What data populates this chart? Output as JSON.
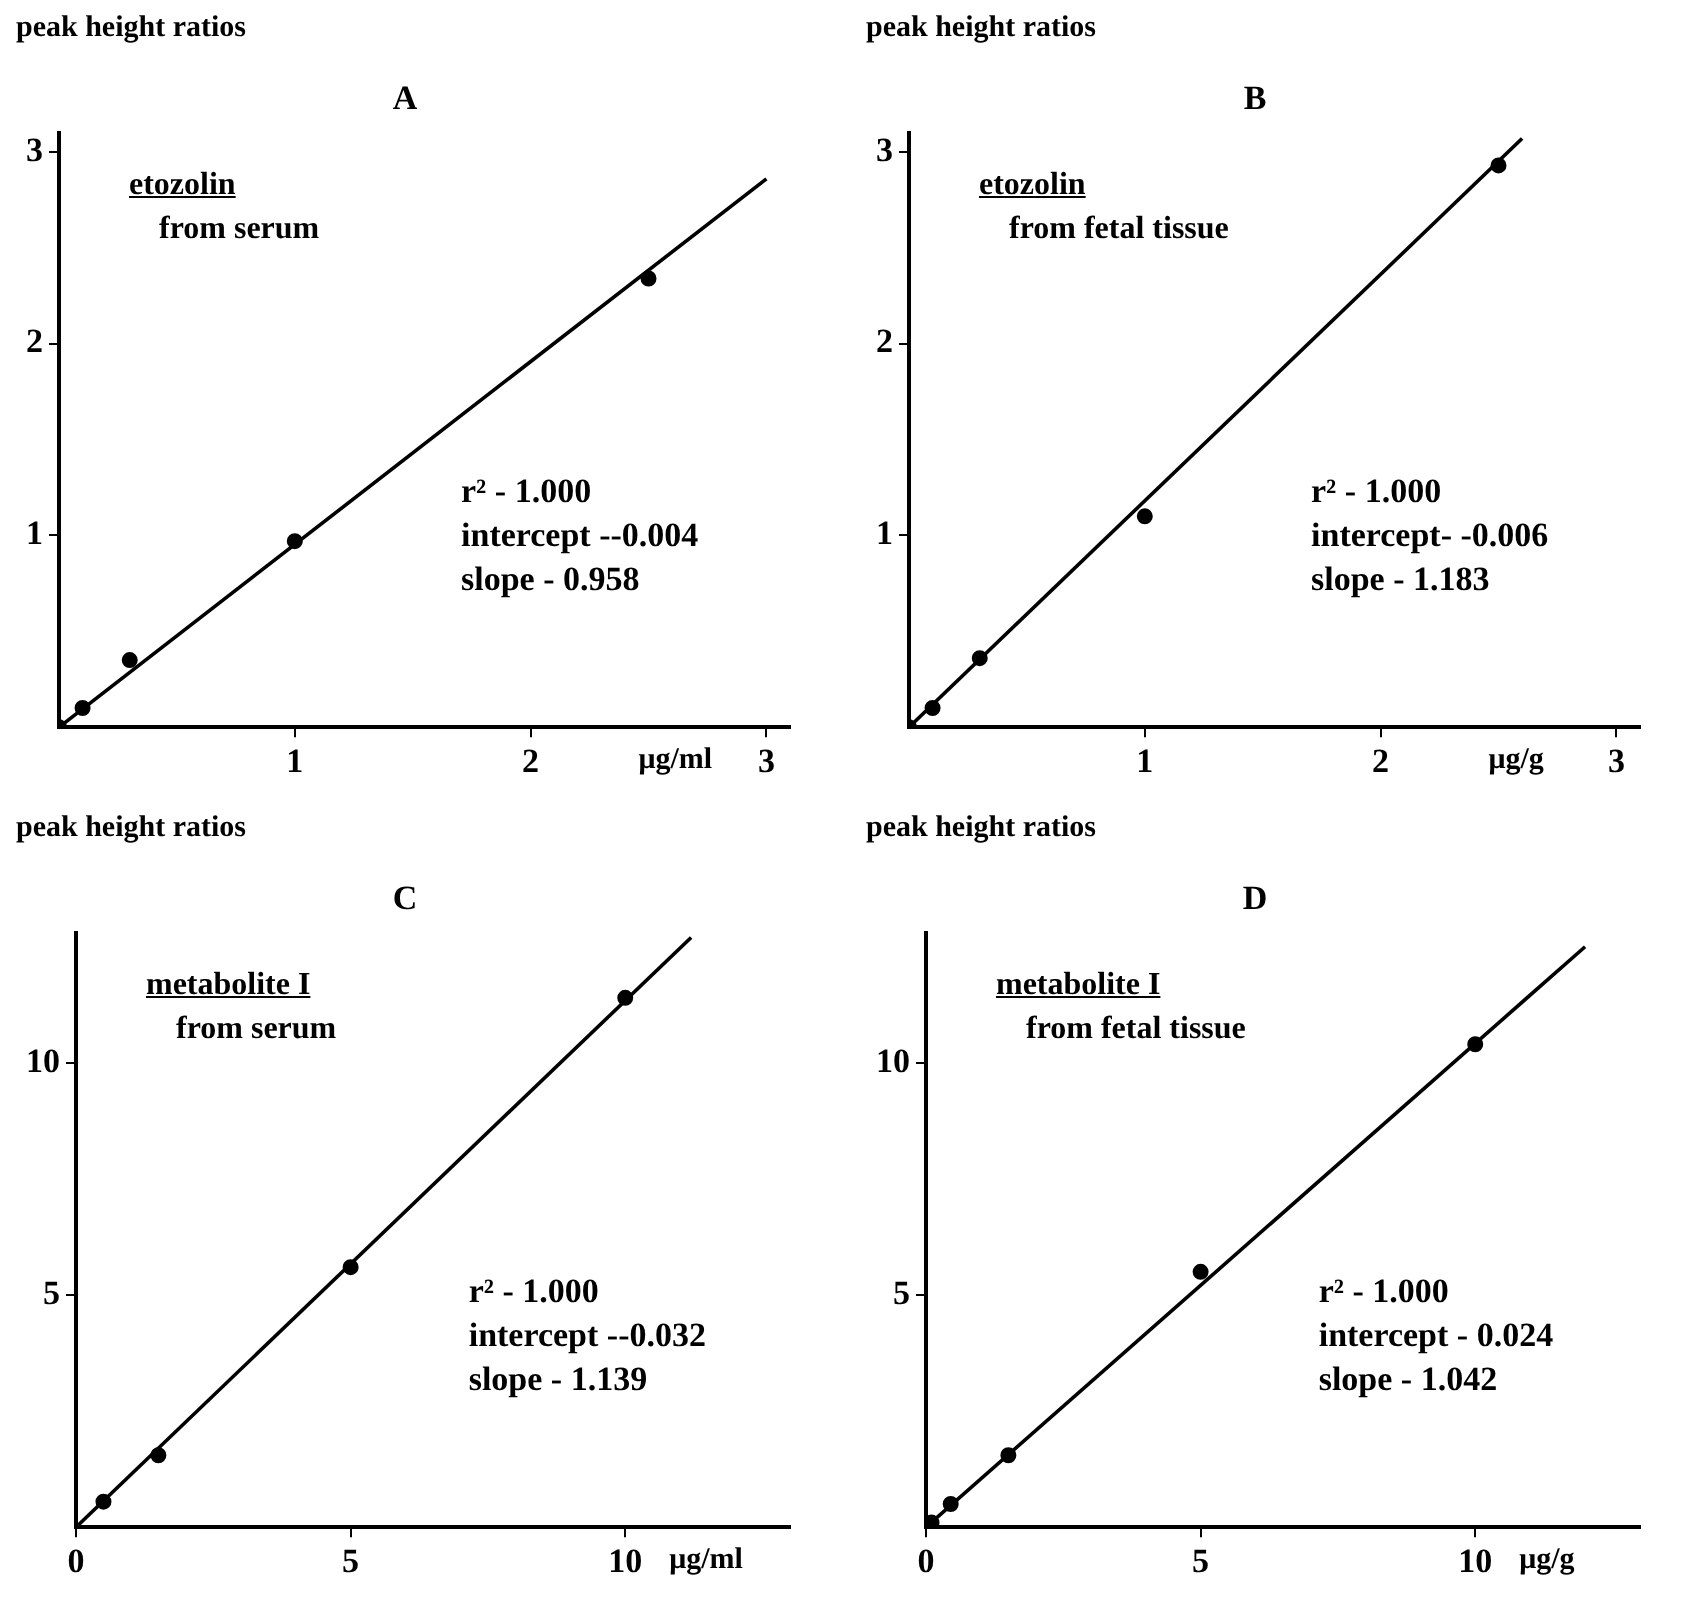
{
  "chart_data": [
    {
      "type": "scatter",
      "title": "A",
      "ylabel": "peak height ratios",
      "xlabel": "μg/ml",
      "xlim": [
        0,
        3.1
      ],
      "ylim": [
        0,
        3.1
      ],
      "xticks": [
        1,
        2,
        3
      ],
      "yticks": [
        1,
        2,
        3
      ],
      "annotations": [
        "etozolin",
        "from serum",
        "r² - 1.000",
        "intercept --0.004",
        "slope - 0.958"
      ],
      "series": [
        {
          "marker": "circle",
          "color": "#000000",
          "x": [
            0,
            0.1,
            0.3,
            1,
            2.5
          ],
          "values": [
            0,
            0.1,
            0.35,
            0.97,
            2.34
          ]
        },
        {
          "type": "line",
          "marker": "none",
          "color": "#000000",
          "x": [
            0,
            3
          ],
          "values": [
            0,
            2.86
          ]
        }
      ]
    },
    {
      "type": "scatter",
      "title": "B",
      "ylabel": "peak height ratios",
      "xlabel": "μg/g",
      "xlim": [
        0,
        3.1
      ],
      "ylim": [
        0,
        3.1
      ],
      "xticks": [
        1,
        2,
        3
      ],
      "yticks": [
        1,
        2,
        3
      ],
      "annotations": [
        "etozolin",
        "from fetal tissue",
        "r² - 1.000",
        "intercept- -0.006",
        "slope - 1.183"
      ],
      "series": [
        {
          "marker": "circle",
          "color": "#000000",
          "x": [
            0,
            0.1,
            0.3,
            1,
            2.5
          ],
          "values": [
            0,
            0.1,
            0.36,
            1.1,
            2.93
          ]
        },
        {
          "type": "line",
          "marker": "none",
          "color": "#000000",
          "x": [
            0,
            2.6
          ],
          "values": [
            0,
            3.07
          ]
        }
      ]
    },
    {
      "type": "scatter",
      "title": "C",
      "ylabel": "peak height ratios",
      "xlabel": "μg/ml",
      "xlim": [
        0,
        13
      ],
      "ylim": [
        0,
        12.8
      ],
      "xticks": [
        0,
        5,
        10
      ],
      "yticks": [
        5,
        10
      ],
      "annotations": [
        "metabolite I",
        "from serum",
        "r² - 1.000",
        "intercept --0.032",
        "slope - 1.139"
      ],
      "series": [
        {
          "marker": "circle",
          "color": "#000000",
          "x": [
            0.5,
            1.5,
            5,
            10
          ],
          "values": [
            0.55,
            1.55,
            5.6,
            11.4
          ]
        },
        {
          "type": "line",
          "marker": "none",
          "color": "#000000",
          "x": [
            0,
            11.2
          ],
          "values": [
            0,
            12.7
          ]
        }
      ]
    },
    {
      "type": "scatter",
      "title": "D",
      "ylabel": "peak height ratios",
      "xlabel": "μg/g",
      "xlim": [
        0,
        13
      ],
      "ylim": [
        0,
        12.8
      ],
      "xticks": [
        0,
        5,
        10
      ],
      "yticks": [
        5,
        10
      ],
      "annotations": [
        "metabolite I",
        "from fetal tissue",
        "r² - 1.000",
        "intercept - 0.024",
        "slope - 1.042"
      ],
      "series": [
        {
          "marker": "circle",
          "color": "#000000",
          "x": [
            0.1,
            0.45,
            1.5,
            5,
            10
          ],
          "values": [
            0.1,
            0.5,
            1.55,
            5.5,
            10.4
          ]
        },
        {
          "type": "line",
          "marker": "none",
          "color": "#000000",
          "x": [
            0,
            12
          ],
          "values": [
            0,
            12.5
          ]
        }
      ]
    }
  ]
}
